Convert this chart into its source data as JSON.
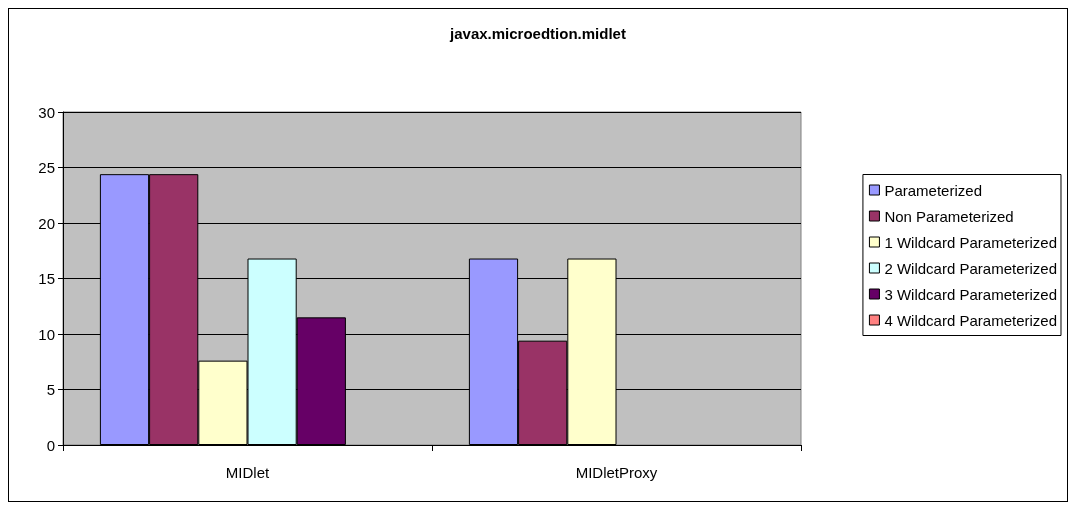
{
  "chart_data": {
    "type": "bar",
    "title": "javax.microedtion.midlet",
    "categories": [
      "MIDlet",
      "MIDletProxy"
    ],
    "series": [
      {
        "name": "Parameterized",
        "color": "#9999ff",
        "values": [
          24.4,
          16.8
        ]
      },
      {
        "name": "Non Parameterized",
        "color": "#993366",
        "values": [
          24.4,
          9.4
        ]
      },
      {
        "name": "1 Wildcard Parameterized",
        "color": "#ffffcc",
        "values": [
          7.6,
          16.8
        ]
      },
      {
        "name": "2 Wildcard Parameterized",
        "color": "#ccffff",
        "values": [
          16.8,
          null
        ]
      },
      {
        "name": "3 Wildcard Parameterized",
        "color": "#660066",
        "values": [
          11.5,
          null
        ]
      },
      {
        "name": "4 Wildcard Parameterized",
        "color": "#ff8080",
        "values": [
          null,
          null
        ]
      }
    ],
    "ylim": [
      0,
      30
    ],
    "yticks": [
      0,
      5,
      10,
      15,
      20,
      25,
      30
    ],
    "grid": "y",
    "legend": "right"
  }
}
